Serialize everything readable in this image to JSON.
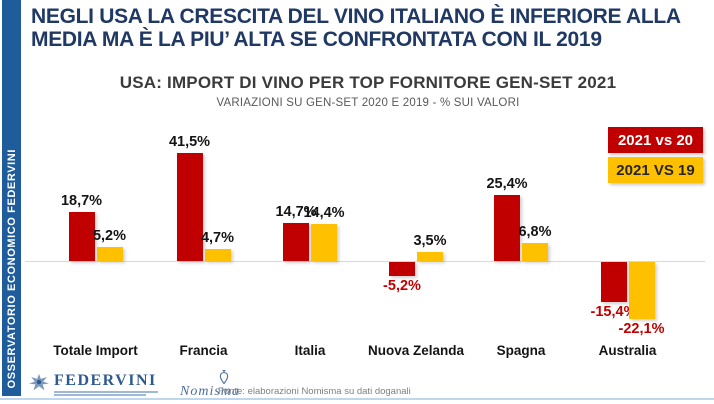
{
  "slide": {
    "title_line1": "NEGLI USA LA CRESCITA DEL VINO ITALIANO È INFERIORE ALLA",
    "title_line2": "MEDIA MA È LA PIU’ ALTA SE CONFRONTATA CON IL 2019",
    "sidebar_text": "OSSERVATORIO ECONOMICO  FEDERVINI"
  },
  "chart_data": {
    "type": "bar",
    "title": "USA: IMPORT DI VINO PER TOP FORNITORE GEN-SET 2021",
    "subtitle": "VARIAZIONI SU GEN-SET 2020 E 2019 - % SUI VALORI",
    "categories": [
      "Totale Import",
      "Francia",
      "Italia",
      "Nuova Zelanda",
      "Spagna",
      "Australia"
    ],
    "series": [
      {
        "name": "2021 vs 20",
        "color": "#C00000",
        "values": [
          18.7,
          41.5,
          14.7,
          -5.2,
          25.4,
          -15.4
        ],
        "labels": [
          "18,7%",
          "41,5%",
          "14,7%",
          "-5,2%",
          "25,4%",
          "-15,4%"
        ]
      },
      {
        "name": "2021 VS 19",
        "color": "#FFC000",
        "values": [
          5.2,
          4.7,
          14.4,
          3.5,
          6.8,
          -22.1
        ],
        "labels": [
          "5,2%",
          "4,7%",
          "14,4%",
          "3,5%",
          "6,8%",
          "-22,1%"
        ]
      }
    ],
    "ylim": [
      -25,
      45
    ],
    "grid": false,
    "legend_position": "top-right",
    "value_format": "percent-comma",
    "negative_label_color": "#C00000"
  },
  "footer": {
    "federvini_logo_text": "FEDERVINI",
    "nomisma_logo_text": "Nomisma",
    "source_text": "Fonte: elaborazioni Nomisma su dati doganali"
  },
  "colors": {
    "title_navy": "#1F3864",
    "sidebar_blue": "#1E5C9B",
    "series_red": "#C00000",
    "series_yellow": "#FFC000",
    "baseline_gray": "#D9D9D9",
    "bottom_line_blue": "#BDD7EE"
  }
}
